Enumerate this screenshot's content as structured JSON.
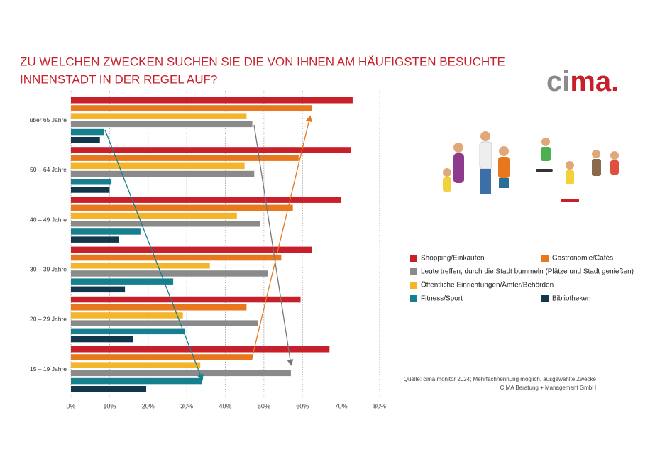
{
  "chart_data": {
    "type": "hbar",
    "title_lines": [
      "ZU WELCHEN ZWECKEN SUCHEN SIE DIE VON IHNEN AM HÄUFIGSTEN BESUCHTE",
      "INNENSTADT IN DER REGEL AUF?"
    ],
    "categories": [
      "über 65 Jahre",
      "50 – 64 Jahre",
      "40 – 49 Jahre",
      "30 – 39 Jahre",
      "20 – 29 Jahre",
      "15 – 19 Jahre"
    ],
    "series": [
      {
        "name": "Shopping/Einkaufen",
        "color": "#c8202a",
        "values": [
          73,
          72.5,
          70,
          62.5,
          59.5,
          67
        ]
      },
      {
        "name": "Gastronomie/Cafés",
        "color": "#e8781e",
        "values": [
          62.5,
          59,
          57.5,
          54.5,
          45.5,
          47
        ]
      },
      {
        "name": "Öffentliche Einrichtungen/Ämter/Behörden",
        "color": "#f4b52a",
        "values": [
          45.5,
          45,
          43,
          36,
          29,
          33.5
        ]
      },
      {
        "name": "Leute treffen, durch die Stadt bummeln (Plätze und Stadt genießen)",
        "color": "#8a8a8a",
        "values": [
          47,
          47.5,
          49,
          51,
          48.5,
          57
        ]
      },
      {
        "name": "Fitness/Sport",
        "color": "#16808f",
        "values": [
          8.5,
          10.5,
          18,
          26.5,
          29.5,
          34
        ]
      },
      {
        "name": "Bibliotheken",
        "color": "#12364b",
        "values": [
          7.5,
          10,
          12.5,
          14,
          16,
          19.5
        ]
      }
    ],
    "xlim": [
      0,
      80
    ],
    "xticks": [
      {
        "value": 0,
        "label": "0%"
      },
      {
        "value": 10,
        "label": "10%"
      },
      {
        "value": 20,
        "label": "20%"
      },
      {
        "value": 30,
        "label": "30%"
      },
      {
        "value": 40,
        "label": "40%"
      },
      {
        "value": 50,
        "label": "50%"
      },
      {
        "value": 60,
        "label": "60%"
      },
      {
        "value": 70,
        "label": "70%"
      },
      {
        "value": 80,
        "label": "80%"
      }
    ],
    "grid": true,
    "source_lines": [
      "Quelle: cima.monitor 2024; Mehrfachnennung möglich, ausgewählte Zwecke",
      "CIMA Beratung + Management GmbH"
    ],
    "logo": [
      "ci",
      "ma."
    ]
  }
}
